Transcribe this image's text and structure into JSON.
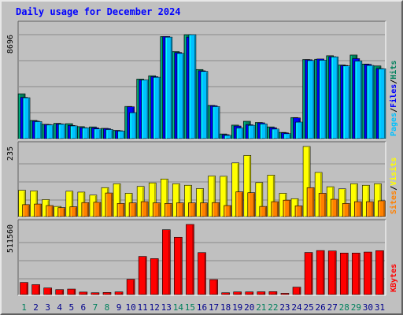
{
  "chart_data": {
    "type": "bar",
    "title": "Daily usage for December 2024",
    "categories": [
      "1",
      "2",
      "3",
      "4",
      "5",
      "6",
      "7",
      "8",
      "9",
      "10",
      "11",
      "12",
      "13",
      "14",
      "15",
      "16",
      "17",
      "18",
      "19",
      "20",
      "21",
      "22",
      "23",
      "24",
      "25",
      "26",
      "27",
      "28",
      "29",
      "30",
      "31"
    ],
    "weekend_days": [
      "1",
      "7",
      "8",
      "14",
      "15",
      "21",
      "22",
      "28",
      "29"
    ],
    "panels": [
      {
        "id": "top",
        "max_label": "8696",
        "ymax": 8696,
        "legend": [
          "Pages",
          "Files",
          "Hits"
        ],
        "series": [
          {
            "name": "Hits",
            "color": "#00805c",
            "values": [
              3750,
              1520,
              1200,
              1280,
              1250,
              1000,
              980,
              860,
              690,
              2690,
              4980,
              5260,
              8540,
              7280,
              8696,
              5780,
              2780,
              390,
              1130,
              1450,
              1350,
              980,
              520,
              1760,
              6620,
              6640,
              6930,
              6160,
              6990,
              6240,
              6080
            ]
          },
          {
            "name": "Files",
            "color": "#0000ff",
            "values": [
              3450,
              1460,
              1180,
              1230,
              1100,
              920,
              900,
              830,
              660,
              2660,
              4900,
              5180,
              8540,
              7200,
              8490,
              5670,
              2750,
              330,
              1050,
              1160,
              1320,
              910,
              480,
              1730,
              6600,
              6660,
              6850,
              6120,
              6690,
              6210,
              5860
            ]
          },
          {
            "name": "Pages",
            "color": "#00c0ff",
            "values": [
              3420,
              1420,
              1150,
              1210,
              1060,
              900,
              810,
              760,
              630,
              2170,
              4910,
              5130,
              8490,
              7130,
              8696,
              5620,
              2680,
              270,
              890,
              1110,
              1230,
              800,
              410,
              1380,
              6530,
              6560,
              6840,
              6080,
              6490,
              6120,
              5840
            ]
          }
        ]
      },
      {
        "id": "middle",
        "max_label": "235",
        "ymax": 235,
        "legend": [
          "Sites",
          "Visits"
        ],
        "series": [
          {
            "name": "Visits",
            "color": "#ffff00",
            "values": [
              88,
              86,
              57,
              34,
              85,
              82,
              72,
              97,
              110,
              78,
              101,
              113,
              126,
              110,
              105,
              94,
              136,
              135,
              180,
              205,
              114,
              139,
              78,
              60,
              235,
              148,
              100,
              93,
              110,
              105,
              110
            ]
          },
          {
            "name": "Sites",
            "color": "#ff8000",
            "values": [
              40,
              42,
              37,
              30,
              33,
              47,
              48,
              79,
              44,
              46,
              50,
              46,
              44,
              46,
              46,
              46,
              47,
              37,
              83,
              80,
              34,
              50,
              55,
              36,
              97,
              78,
              58,
              44,
              50,
              50,
              53
            ]
          }
        ]
      },
      {
        "id": "bottom",
        "max_label": "511560",
        "ymax": 511560,
        "legend": [
          "KBytes"
        ],
        "series": [
          {
            "name": "KBytes",
            "color": "#ff0000",
            "values": [
              88000,
              72000,
              48000,
              36000,
              40000,
              18000,
              13000,
              15000,
              19000,
              111000,
              278000,
              262000,
              473000,
              418000,
              511560,
              306000,
              109000,
              13000,
              19000,
              19000,
              20000,
              21000,
              9000,
              54000,
              307000,
              321000,
              318000,
              303000,
              303000,
              310000,
              320000
            ]
          }
        ]
      }
    ],
    "legend_colors": {
      "Pages": "#00c0ff",
      "Files": "#0000ff",
      "Hits": "#00805c",
      "Sites": "#ff8000",
      "Visits": "#ffff00",
      "KBytes": "#ff0000"
    },
    "colors": {
      "background": "#c0c0c0",
      "plot": "#c0c0c0",
      "title": "#0000ff",
      "weekday_label": "#00008b",
      "weekend_label": "#00805c",
      "separator": "#000000"
    }
  }
}
